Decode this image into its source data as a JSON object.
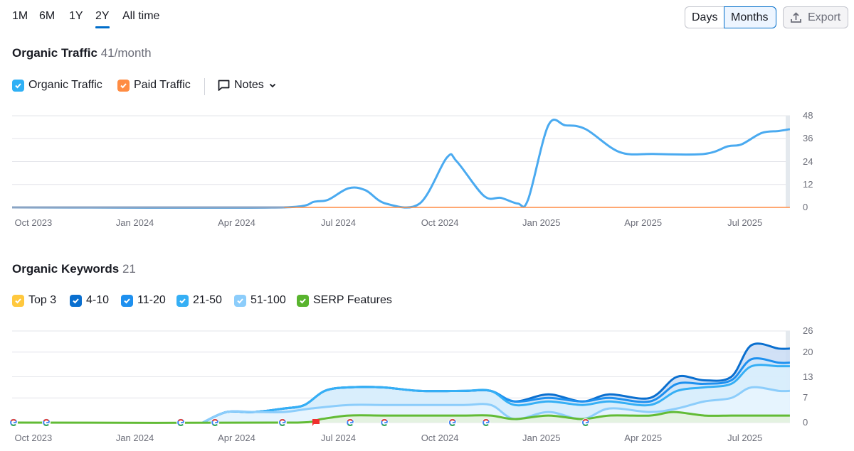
{
  "period_tabs": [
    {
      "label": "1M"
    },
    {
      "label": "6M"
    },
    {
      "label": "1Y"
    },
    {
      "label": "2Y",
      "active": true
    },
    {
      "label": "All time"
    }
  ],
  "granularity": {
    "days": "Days",
    "months": "Months",
    "selected": "Months"
  },
  "export_label": "Export",
  "traffic": {
    "title": "Organic Traffic",
    "value": "41/month",
    "legend": [
      {
        "label": "Organic Traffic",
        "color": "#2fb0f5"
      },
      {
        "label": "Paid Traffic",
        "color": "#ff8c43"
      }
    ],
    "notes_label": "Notes"
  },
  "keywords": {
    "title": "Organic Keywords",
    "value": "21",
    "legend": [
      {
        "label": "Top 3",
        "color": "#ffc83e"
      },
      {
        "label": "4-10",
        "color": "#0a6fcf"
      },
      {
        "label": "11-20",
        "color": "#1e90ef"
      },
      {
        "label": "21-50",
        "color": "#35aff5"
      },
      {
        "label": "51-100",
        "color": "#8ccdfb"
      },
      {
        "label": "SERP Features",
        "color": "#59b42e"
      }
    ]
  },
  "chart_data": [
    {
      "type": "line",
      "title": "Organic Traffic",
      "x_unit": "months since Oct 2023",
      "xlim": [
        -0.63,
        22.33
      ],
      "ylim": [
        0,
        48
      ],
      "y_ticks": [
        "0",
        "12",
        "24",
        "36",
        "48"
      ],
      "yticks_values": [
        0,
        12,
        24,
        36,
        48
      ],
      "x_ticks": [
        {
          "label": "Oct 2023",
          "x": 0
        },
        {
          "label": "Jan 2024",
          "x": 3
        },
        {
          "label": "Apr 2024",
          "x": 6
        },
        {
          "label": "Jul 2024",
          "x": 9
        },
        {
          "label": "Oct 2024",
          "x": 12
        },
        {
          "label": "Jan 2025",
          "x": 15
        },
        {
          "label": "Apr 2025",
          "x": 18
        },
        {
          "label": "Jul 2025",
          "x": 21
        }
      ],
      "series": [
        {
          "name": "Organic Traffic",
          "color": "#4aaaf0",
          "points": [
            [
              -0.63,
              0
            ],
            [
              7.4,
              0
            ],
            [
              8.3,
              3
            ],
            [
              8.7,
              4
            ],
            [
              9.3,
              10
            ],
            [
              9.8,
              9
            ],
            [
              10.4,
              2
            ],
            [
              11.4,
              2
            ],
            [
              12.2,
              26
            ],
            [
              12.5,
              24
            ],
            [
              13.3,
              6
            ],
            [
              13.8,
              5
            ],
            [
              14.3,
              2
            ],
            [
              14.6,
              4
            ],
            [
              15.2,
              43
            ],
            [
              15.7,
              43
            ],
            [
              16.3,
              41
            ],
            [
              17.3,
              29
            ],
            [
              18.3,
              28
            ],
            [
              19.8,
              28
            ],
            [
              20.5,
              32
            ],
            [
              20.9,
              33
            ],
            [
              21.5,
              39
            ],
            [
              22.0,
              40
            ],
            [
              22.33,
              41
            ]
          ]
        },
        {
          "name": "Paid Traffic",
          "color": "#ff8c43",
          "points": [
            [
              -0.63,
              0
            ],
            [
              22.33,
              0
            ]
          ]
        }
      ]
    },
    {
      "type": "area",
      "title": "Organic Keywords",
      "x_unit": "months since Oct 2023",
      "xlim": [
        -0.63,
        22.33
      ],
      "ylim": [
        0,
        26
      ],
      "y_ticks": [
        "0",
        "7",
        "13",
        "20",
        "26"
      ],
      "yticks_values": [
        0,
        7,
        13,
        20,
        26
      ],
      "x_ticks": [
        {
          "label": "Oct 2023",
          "x": 0
        },
        {
          "label": "Jan 2024",
          "x": 3
        },
        {
          "label": "Apr 2024",
          "x": 6
        },
        {
          "label": "Jul 2024",
          "x": 9
        },
        {
          "label": "Oct 2024",
          "x": 12
        },
        {
          "label": "Jan 2025",
          "x": 15
        },
        {
          "label": "Apr 2025",
          "x": 18
        },
        {
          "label": "Jul 2025",
          "x": 21
        }
      ],
      "series": [
        {
          "name": "4-10",
          "color": "#0a6fcf",
          "fill": "#c9dcf5",
          "points": [
            [
              5.0,
              0
            ],
            [
              5.7,
              3
            ],
            [
              6.5,
              3
            ],
            [
              7.4,
              4
            ],
            [
              8.0,
              5
            ],
            [
              8.6,
              9
            ],
            [
              9.3,
              10
            ],
            [
              10.3,
              10
            ],
            [
              11.4,
              9
            ],
            [
              12.7,
              9
            ],
            [
              13.5,
              9
            ],
            [
              14.2,
              6
            ],
            [
              15.2,
              8
            ],
            [
              16.2,
              6
            ],
            [
              17.0,
              8
            ],
            [
              18.2,
              7
            ],
            [
              19.0,
              13
            ],
            [
              19.8,
              12
            ],
            [
              20.6,
              13
            ],
            [
              21.2,
              22
            ],
            [
              22.0,
              21
            ],
            [
              22.33,
              21
            ]
          ]
        },
        {
          "name": "11-20",
          "color": "#1e90ef",
          "fill": "#d2e6fa",
          "points": [
            [
              5.0,
              0
            ],
            [
              5.7,
              3
            ],
            [
              6.5,
              3
            ],
            [
              7.4,
              4
            ],
            [
              8.0,
              5
            ],
            [
              8.6,
              9
            ],
            [
              9.3,
              10
            ],
            [
              10.3,
              10
            ],
            [
              11.4,
              9
            ],
            [
              12.7,
              9
            ],
            [
              13.5,
              9
            ],
            [
              14.2,
              6
            ],
            [
              15.2,
              7
            ],
            [
              16.2,
              6
            ],
            [
              17.0,
              7
            ],
            [
              18.2,
              6
            ],
            [
              19.0,
              11
            ],
            [
              19.8,
              11
            ],
            [
              20.6,
              12
            ],
            [
              21.2,
              18
            ],
            [
              22.0,
              17
            ],
            [
              22.33,
              17
            ]
          ]
        },
        {
          "name": "21-50",
          "color": "#35aff5",
          "fill": "#dbeefc",
          "points": [
            [
              5.0,
              0
            ],
            [
              5.7,
              3
            ],
            [
              6.5,
              3
            ],
            [
              7.4,
              4
            ],
            [
              8.0,
              5
            ],
            [
              8.6,
              9
            ],
            [
              9.3,
              10
            ],
            [
              10.3,
              10
            ],
            [
              11.4,
              9
            ],
            [
              12.7,
              9
            ],
            [
              13.5,
              9
            ],
            [
              14.2,
              5
            ],
            [
              15.2,
              6
            ],
            [
              16.2,
              5
            ],
            [
              17.0,
              6
            ],
            [
              18.2,
              5
            ],
            [
              19.0,
              9
            ],
            [
              19.8,
              10
            ],
            [
              20.6,
              11
            ],
            [
              21.2,
              16
            ],
            [
              22.0,
              16
            ],
            [
              22.33,
              16
            ]
          ]
        },
        {
          "name": "51-100",
          "color": "#8ccdfb",
          "fill": "#e8f4fe",
          "points": [
            [
              5.0,
              0
            ],
            [
              5.7,
              3
            ],
            [
              6.5,
              3
            ],
            [
              7.4,
              3
            ],
            [
              8.2,
              4
            ],
            [
              9.3,
              5
            ],
            [
              10.3,
              5
            ],
            [
              11.4,
              5
            ],
            [
              12.7,
              5
            ],
            [
              13.5,
              5
            ],
            [
              14.2,
              1
            ],
            [
              15.2,
              3
            ],
            [
              16.2,
              1
            ],
            [
              17.0,
              4
            ],
            [
              18.2,
              3
            ],
            [
              19.0,
              4
            ],
            [
              19.8,
              6
            ],
            [
              20.6,
              7
            ],
            [
              21.2,
              10
            ],
            [
              22.0,
              9
            ],
            [
              22.33,
              9
            ]
          ]
        },
        {
          "name": "SERP Features",
          "color": "#62bb35",
          "fill": "#e3f1dc",
          "points": [
            [
              -0.63,
              0
            ],
            [
              7.8,
              0
            ],
            [
              8.5,
              1
            ],
            [
              9.3,
              2
            ],
            [
              10.3,
              2
            ],
            [
              11.4,
              2
            ],
            [
              12.7,
              2
            ],
            [
              13.5,
              2
            ],
            [
              14.2,
              1
            ],
            [
              15.2,
              2
            ],
            [
              16.2,
              1
            ],
            [
              17.0,
              2
            ],
            [
              18.2,
              2
            ],
            [
              18.9,
              3
            ],
            [
              19.8,
              2
            ],
            [
              20.6,
              2
            ],
            [
              21.2,
              2
            ],
            [
              22.33,
              2
            ]
          ]
        }
      ],
      "annotations": [
        {
          "type": "google",
          "x": -0.63
        },
        {
          "type": "google",
          "x": 0.38
        },
        {
          "type": "google",
          "x": 4.35
        },
        {
          "type": "google",
          "x": 5.36
        },
        {
          "type": "google",
          "x": 7.35
        },
        {
          "type": "google",
          "x": 9.35
        },
        {
          "type": "google",
          "x": 10.36
        },
        {
          "type": "google",
          "x": 12.37
        },
        {
          "type": "google",
          "x": 13.36
        },
        {
          "type": "google",
          "x": 16.3
        },
        {
          "type": "flag",
          "x": 8.34
        }
      ]
    }
  ]
}
